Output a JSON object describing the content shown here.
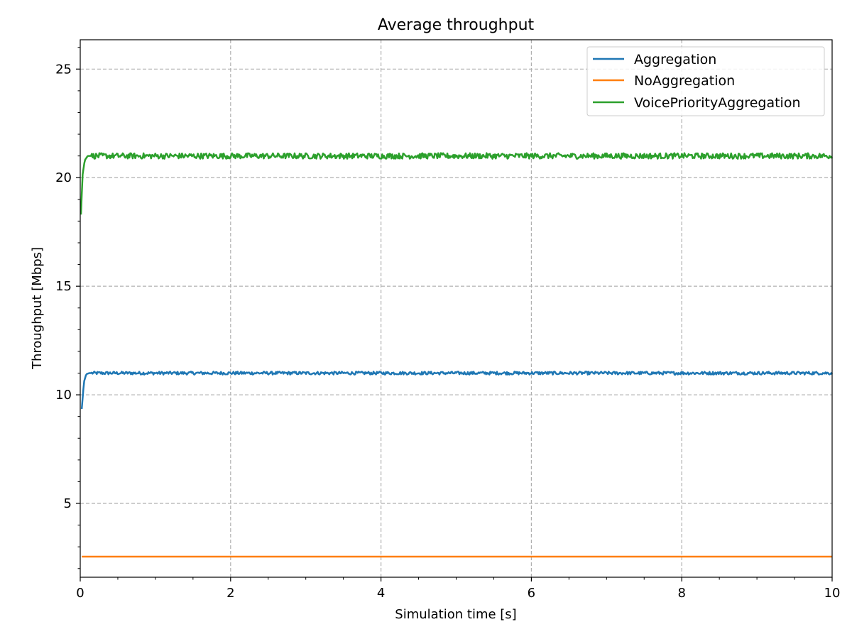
{
  "chart_data": {
    "type": "line",
    "title": "Average throughput",
    "xlabel": "Simulation time [s]",
    "ylabel": "Throughput [Mbps]",
    "xlim": [
      0,
      10
    ],
    "ylim": [
      1.6,
      26.35
    ],
    "xticks": [
      "0",
      "2",
      "4",
      "6",
      "8",
      "10"
    ],
    "yticks": [
      "5",
      "10",
      "15",
      "20",
      "25"
    ],
    "grid": true,
    "legend_position": "top-right",
    "series": [
      {
        "name": "Aggregation",
        "color": "#1f77b4",
        "x": [
          0.02,
          0.05,
          0.08,
          0.12,
          0.2,
          0.5,
          1,
          2,
          3,
          4,
          5,
          6,
          7,
          8,
          9,
          10
        ],
        "y": [
          9.35,
          10.6,
          10.95,
          11.0,
          11.0,
          11.0,
          11.0,
          11.0,
          11.0,
          11.0,
          11.0,
          11.0,
          11.0,
          11.0,
          11.0,
          11.0
        ]
      },
      {
        "name": "NoAggregation",
        "color": "#ff7f0e",
        "x": [
          0.02,
          10
        ],
        "y": [
          2.55,
          2.55
        ]
      },
      {
        "name": "VoicePriorityAggregation",
        "color": "#2ca02c",
        "x": [
          0.01,
          0.03,
          0.06,
          0.1,
          0.2,
          0.5,
          1,
          2,
          3,
          4,
          5,
          6,
          7,
          8,
          9,
          10
        ],
        "y": [
          18.3,
          20.1,
          20.8,
          21.0,
          21.0,
          21.0,
          21.0,
          21.0,
          21.0,
          21.0,
          21.0,
          21.0,
          21.0,
          21.0,
          21.0,
          21.0
        ]
      }
    ]
  }
}
